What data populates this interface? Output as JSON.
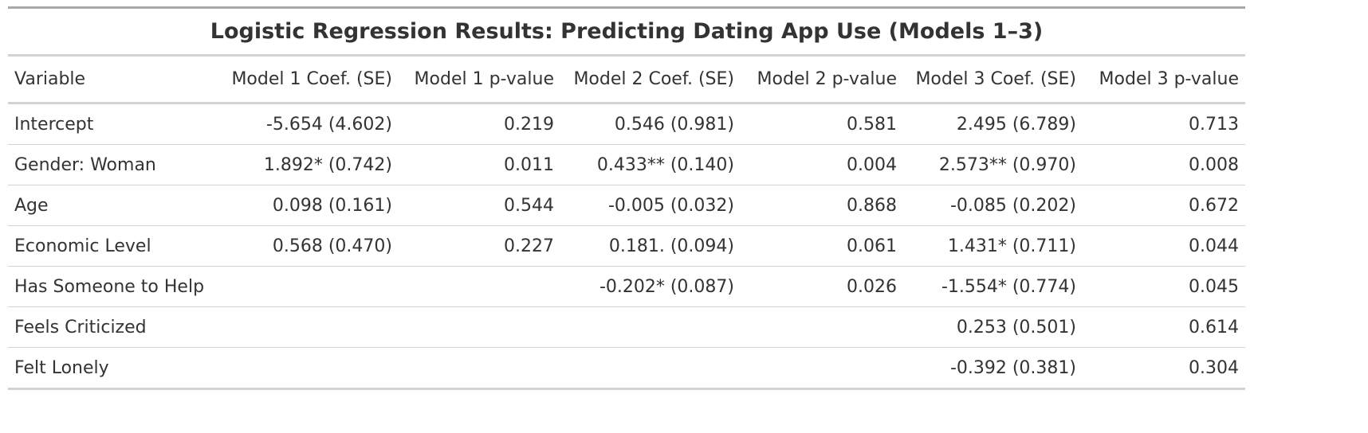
{
  "title": "Logistic Regression Results: Predicting Dating App Use (Models 1–3)",
  "columns": [
    "Variable",
    "Model 1 Coef. (SE)",
    "Model 1 p-value",
    "Model 2 Coef. (SE)",
    "Model 2 p-value",
    "Model 3 Coef. (SE)",
    "Model 3 p-value"
  ],
  "rows": [
    [
      "Intercept",
      "-5.654 (4.602)",
      "0.219",
      "0.546 (0.981)",
      "0.581",
      "2.495 (6.789)",
      "0.713"
    ],
    [
      "Gender: Woman",
      "1.892* (0.742)",
      "0.011",
      "0.433** (0.140)",
      "0.004",
      "2.573** (0.970)",
      "0.008"
    ],
    [
      "Age",
      "0.098 (0.161)",
      "0.544",
      "-0.005 (0.032)",
      "0.868",
      "-0.085 (0.202)",
      "0.672"
    ],
    [
      "Economic Level",
      "0.568 (0.470)",
      "0.227",
      "0.181. (0.094)",
      "0.061",
      "1.431* (0.711)",
      "0.044"
    ],
    [
      "Has Someone to Help",
      "",
      "",
      "-0.202* (0.087)",
      "0.026",
      "-1.554* (0.774)",
      "0.045"
    ],
    [
      "Feels Criticized",
      "",
      "",
      "",
      "",
      "0.253 (0.501)",
      "0.614"
    ],
    [
      "Felt Lonely",
      "",
      "",
      "",
      "",
      "-0.392 (0.381)",
      "0.304"
    ]
  ],
  "colors": {
    "text": "#333333",
    "rule_dark": "#a8a8a8",
    "rule_light": "#d3d3d3"
  }
}
